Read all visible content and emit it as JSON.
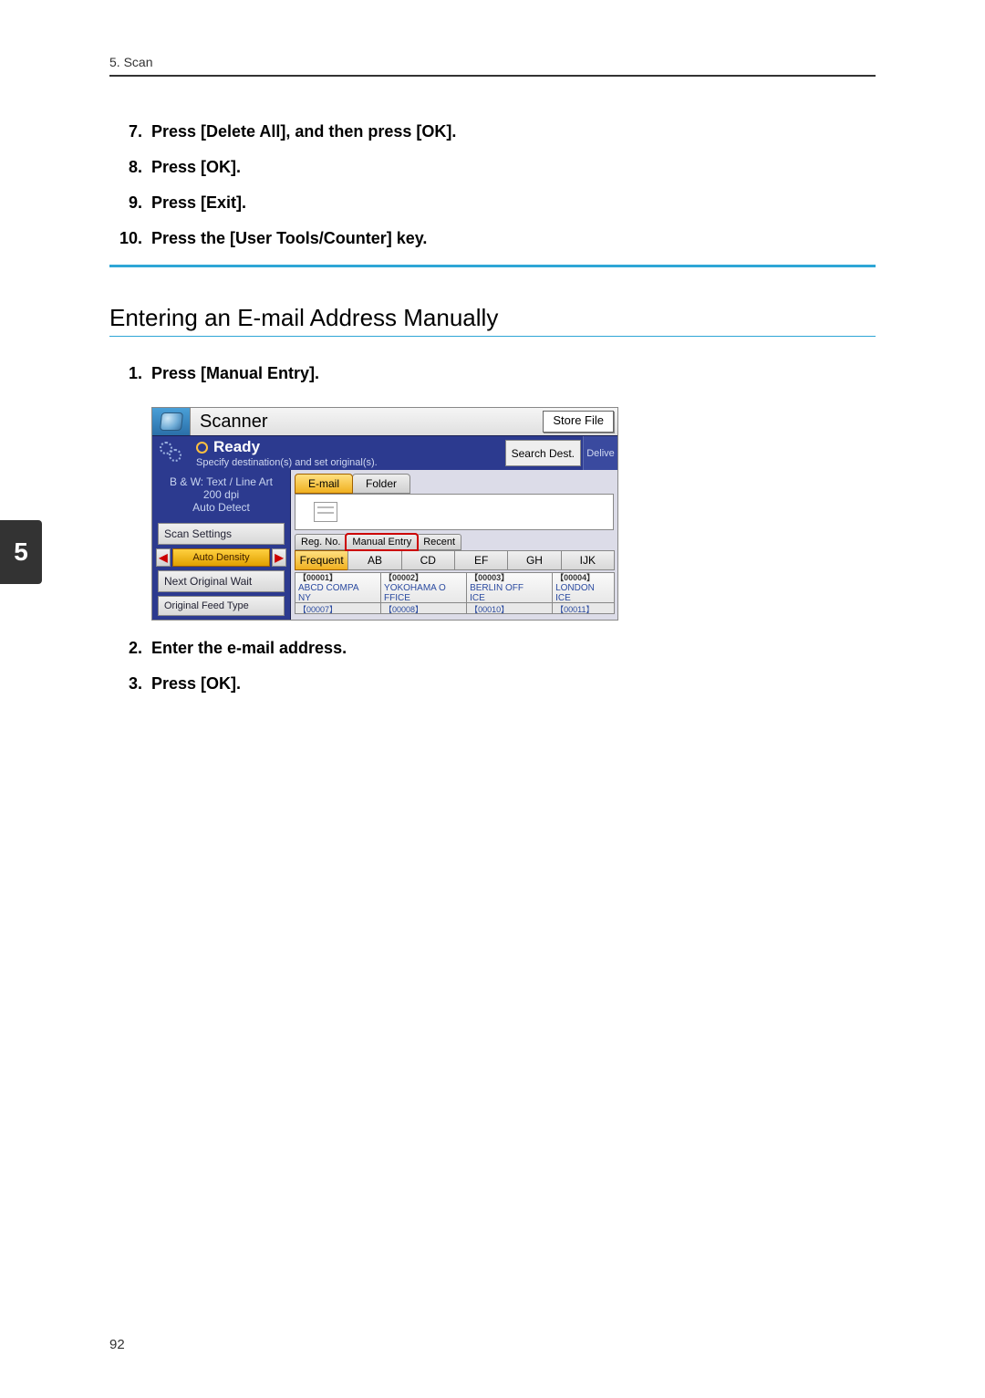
{
  "header": {
    "section": "5. Scan"
  },
  "stepsA": [
    {
      "num": "7.",
      "text": "Press [Delete All], and then press [OK]."
    },
    {
      "num": "8.",
      "text": "Press [OK]."
    },
    {
      "num": "9.",
      "text": "Press [Exit]."
    },
    {
      "num": "10.",
      "text": "Press the [User Tools/Counter] key."
    }
  ],
  "sectionTitle": "Entering an E-mail Address Manually",
  "stepsB": [
    {
      "num": "1.",
      "text": "Press [Manual Entry]."
    }
  ],
  "stepsC": [
    {
      "num": "2.",
      "text": "Enter the e-mail address."
    },
    {
      "num": "3.",
      "text": "Press [OK]."
    }
  ],
  "sidebarTab": "5",
  "pageNumber": "92",
  "screenshot": {
    "topTitle": "Scanner",
    "storeFile": "Store File",
    "ready": "Ready",
    "readySub": "Specify destination(s) and set original(s).",
    "searchDest": "Search Dest.",
    "delive": "Delive",
    "leftInfo1": "B & W: Text / Line Art",
    "leftInfo2": "200 dpi",
    "leftInfo3": "Auto Detect",
    "scanSettings": "Scan Settings",
    "autoDensity": "Auto Density",
    "nextOriginal": "Next Original Wait",
    "originalFeed": "Original Feed Type",
    "tabEmail": "E-mail",
    "tabFolder": "Folder",
    "regNo": "Reg. No.",
    "manualEntry": "Manual Entry",
    "recent": "Recent",
    "alpha": {
      "freq": "Frequent",
      "ab": "AB",
      "cd": "CD",
      "ef": "EF",
      "gh": "GH",
      "ijk": "IJK"
    },
    "dest": [
      {
        "code": "【00001】",
        "name": "ABCD COMPA",
        "name2": "NY"
      },
      {
        "code": "【00002】",
        "name": "YOKOHAMA O",
        "name2": "FFICE"
      },
      {
        "code": "【00003】",
        "name": "BERLIN OFF",
        "name2": "ICE"
      },
      {
        "code": "【00004】",
        "name": "LONDON",
        "name2": "ICE"
      }
    ],
    "thin": [
      "【00007】",
      "【00008】",
      "【00010】",
      "【00011】"
    ]
  },
  "colors": {
    "accent": "#2ea6d6",
    "navy": "#2c3a8f",
    "amber": "#f0b020",
    "sidebar": "#333333"
  }
}
